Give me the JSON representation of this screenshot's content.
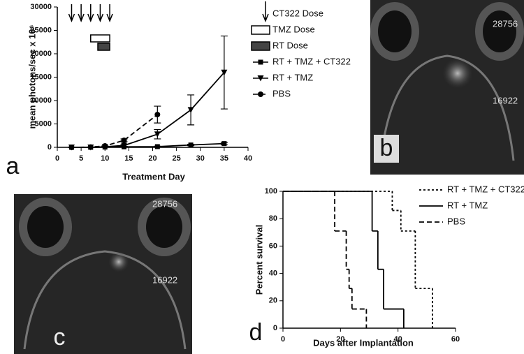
{
  "chart_data": [
    {
      "type": "line",
      "x_label": "Treatment Day",
      "y_label": "mean photons/sec x 10⁶",
      "xlim": [
        0,
        40
      ],
      "xticks": [
        0,
        5,
        10,
        15,
        20,
        25,
        30,
        35,
        40
      ],
      "ylim": [
        0,
        30000
      ],
      "yticks": [
        0,
        5000,
        10000,
        15000,
        20000,
        25000,
        30000
      ],
      "doses": [
        {
          "name": "CT322 Dose",
          "kind": "arrows",
          "color": "#000000",
          "days": [
            3,
            5,
            7,
            9,
            11
          ]
        },
        {
          "name": "TMZ Dose",
          "kind": "box",
          "color": "#ffffff",
          "days": [
            7,
            11
          ]
        },
        {
          "name": "RT Dose",
          "kind": "box",
          "color": "#444444",
          "days": [
            8.5,
            11
          ]
        }
      ],
      "series": [
        {
          "name": "RT + TMZ + CT322",
          "color": "#000000",
          "marker": "square",
          "dash": "solid",
          "x": [
            3,
            7,
            10,
            14,
            21,
            28,
            35
          ],
          "values": [
            0,
            0,
            50,
            100,
            150,
            500,
            800
          ],
          "errors": [
            0,
            0,
            0,
            0,
            100,
            150,
            250
          ]
        },
        {
          "name": "RT + TMZ",
          "color": "#000000",
          "marker": "triangle-down",
          "dash": "solid",
          "x": [
            3,
            7,
            10,
            14,
            21,
            28,
            35
          ],
          "values": [
            0,
            0,
            100,
            400,
            2800,
            8000,
            16000
          ],
          "errors": [
            0,
            0,
            0,
            200,
            1000,
            3200,
            7800
          ]
        },
        {
          "name": "PBS",
          "color": "#000000",
          "marker": "circle",
          "dash": "dashed",
          "x": [
            3,
            7,
            10,
            14,
            21
          ],
          "values": [
            0,
            50,
            300,
            1500,
            7000
          ],
          "errors": [
            0,
            0,
            0,
            300,
            1800
          ]
        }
      ]
    },
    {
      "type": "step",
      "x_label": "Days after Implantation",
      "y_label": "Percent survival",
      "xlim": [
        0,
        60
      ],
      "xticks": [
        0,
        20,
        40,
        60
      ],
      "ylim": [
        0,
        100
      ],
      "yticks": [
        0,
        20,
        40,
        60,
        80,
        100
      ],
      "series": [
        {
          "name": "RT + TMZ + CT322",
          "color": "#000000",
          "dash": "dotted",
          "x": [
            0,
            38,
            41,
            46,
            52
          ],
          "values": [
            100,
            86,
            71,
            29,
            0
          ]
        },
        {
          "name": "RT + TMZ",
          "color": "#000000",
          "dash": "solid",
          "x": [
            0,
            31,
            33,
            35,
            42
          ],
          "values": [
            100,
            71,
            43,
            14,
            0
          ]
        },
        {
          "name": "PBS",
          "color": "#000000",
          "dash": "dashed",
          "x": [
            0,
            18,
            22,
            23,
            24,
            29
          ],
          "values": [
            100,
            71,
            43,
            29,
            14,
            0
          ]
        }
      ]
    }
  ],
  "panels": [
    "a",
    "b",
    "c",
    "d"
  ],
  "images": [
    {
      "annotations": [
        "28756",
        "16922"
      ]
    },
    {
      "annotations": [
        "28756",
        "16922"
      ]
    }
  ]
}
